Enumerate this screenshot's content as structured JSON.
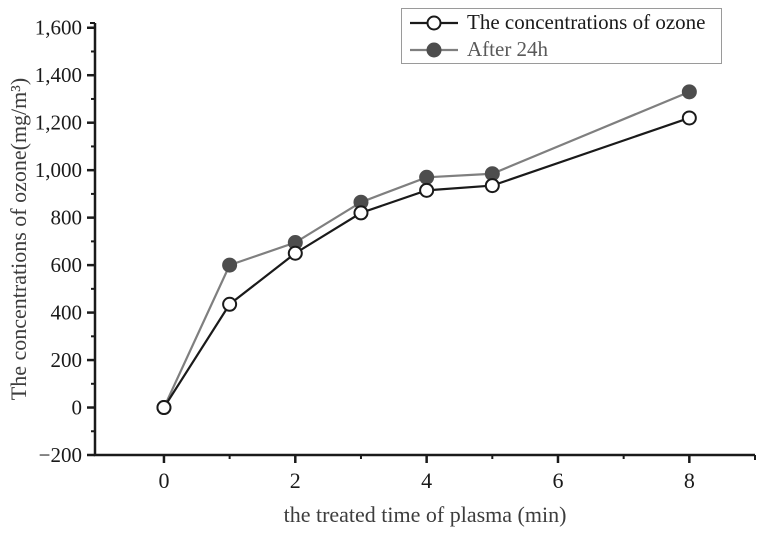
{
  "figure": {
    "background": "#ffffff",
    "axis_color": "#1a1a1a",
    "title_color": "#3d3d3d"
  },
  "chart_data": {
    "type": "line",
    "title": "",
    "xlabel": "the treated time of plasma (min)",
    "ylabel": "The concentrations of ozone(mg/m³)",
    "x": [
      0,
      1,
      2,
      3,
      4,
      5,
      8
    ],
    "series": [
      {
        "name": "The concentrations of ozone",
        "marker": "open-circle",
        "line_color": "#1a1a1a",
        "marker_fill": "#ffffff",
        "marker_stroke": "#1a1a1a",
        "label_color": "#1a1a1a",
        "values": [
          0,
          435,
          650,
          820,
          915,
          935,
          1220
        ]
      },
      {
        "name": "After 24h",
        "marker": "filled-circle",
        "line_color": "#7f7f7f",
        "marker_fill": "#4d4d4d",
        "marker_stroke": "#4d4d4d",
        "label_color": "#595959",
        "values": [
          0,
          600,
          695,
          865,
          970,
          985,
          1330
        ]
      }
    ],
    "xlim": [
      -1.05,
      9.0
    ],
    "ylim": [
      -200,
      1620
    ],
    "x_ticks": {
      "major_values": [
        0,
        2,
        4,
        6,
        8
      ],
      "major_labels": [
        "0",
        "2",
        "4",
        "6",
        "8"
      ],
      "minor_values": [
        1,
        3,
        5,
        7
      ]
    },
    "y_ticks": {
      "major_values": [
        -200,
        0,
        200,
        400,
        600,
        800,
        1000,
        1200,
        1400,
        1600
      ],
      "major_labels": [
        "−200",
        "0",
        "200",
        "400",
        "600",
        "800",
        "1,000",
        "1,200",
        "1,400",
        "1,600"
      ],
      "minor_values": [
        -100,
        100,
        300,
        500,
        700,
        900,
        1100,
        1300,
        1500
      ]
    },
    "grid": false,
    "legend": {
      "position": "top-right",
      "border_color": "#9a9a9a"
    }
  }
}
